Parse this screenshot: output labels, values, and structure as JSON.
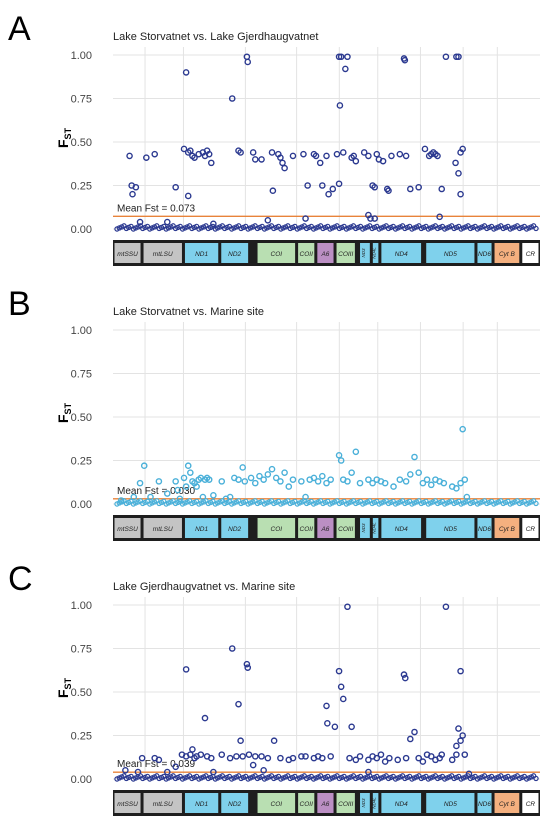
{
  "colors": {
    "dark_points": "#2b3990",
    "light_points": "#4ab0d9",
    "mean_line": "#e8833a",
    "grid": "#e3e3e3",
    "gene_blue": "#7fd1ec",
    "gene_grey": "#c4c4c4",
    "gene_green": "#b9dfb2",
    "gene_purple": "#bb8fc4",
    "gene_orange": "#f4b07f",
    "gene_white": "#ffffff",
    "gene_dark": "#1e1e1e"
  },
  "gene_map": [
    {
      "label": "mtSSU",
      "color": "gene_grey"
    },
    {
      "label": "mtLSU",
      "color": "gene_grey"
    },
    {
      "label": "ND1",
      "color": "gene_blue"
    },
    {
      "label": "ND2",
      "color": "gene_blue"
    },
    {
      "label": "COI",
      "color": "gene_green"
    },
    {
      "label": "COII",
      "color": "gene_green"
    },
    {
      "label": "A6",
      "color": "gene_purple"
    },
    {
      "label": "COIII",
      "color": "gene_green"
    },
    {
      "label": "ND3",
      "color": "gene_blue"
    },
    {
      "label": "ND4L",
      "color": "gene_blue"
    },
    {
      "label": "ND4",
      "color": "gene_blue"
    },
    {
      "label": "ND5",
      "color": "gene_blue"
    },
    {
      "label": "ND6",
      "color": "gene_blue"
    },
    {
      "label": "Cyt B",
      "color": "gene_orange"
    },
    {
      "label": "CR",
      "color": "gene_white"
    }
  ],
  "chart_data": [
    {
      "type": "scatter",
      "panel_letter": "A",
      "title": "Lake Storvatnet vs. Lake Gjerdhaugvatnet",
      "ylabel": "F",
      "ylabel_sub": "ST",
      "ylim": [
        0,
        1
      ],
      "yticks": [
        "0.00",
        "0.25",
        "0.50",
        "0.75",
        "1.00"
      ],
      "grid": true,
      "mean_label": "Mean Fst = 0.073",
      "mean_value": 0.073,
      "point_color": "dark_points",
      "points": [
        [
          0.03,
          0.42
        ],
        [
          0.035,
          0.25
        ],
        [
          0.037,
          0.2
        ],
        [
          0.045,
          0.24
        ],
        [
          0.07,
          0.41
        ],
        [
          0.09,
          0.43
        ],
        [
          0.14,
          0.24
        ],
        [
          0.165,
          0.9
        ],
        [
          0.16,
          0.46
        ],
        [
          0.17,
          0.44
        ],
        [
          0.175,
          0.45
        ],
        [
          0.18,
          0.42
        ],
        [
          0.185,
          0.41
        ],
        [
          0.17,
          0.19
        ],
        [
          0.195,
          0.43
        ],
        [
          0.205,
          0.44
        ],
        [
          0.21,
          0.42
        ],
        [
          0.215,
          0.45
        ],
        [
          0.22,
          0.43
        ],
        [
          0.225,
          0.38
        ],
        [
          0.275,
          0.75
        ],
        [
          0.29,
          0.45
        ],
        [
          0.295,
          0.44
        ],
        [
          0.31,
          0.99
        ],
        [
          0.312,
          0.96
        ],
        [
          0.33,
          0.4
        ],
        [
          0.325,
          0.44
        ],
        [
          0.345,
          0.4
        ],
        [
          0.37,
          0.44
        ],
        [
          0.372,
          0.22
        ],
        [
          0.385,
          0.43
        ],
        [
          0.39,
          0.41
        ],
        [
          0.395,
          0.38
        ],
        [
          0.4,
          0.35
        ],
        [
          0.42,
          0.42
        ],
        [
          0.445,
          0.43
        ],
        [
          0.455,
          0.25
        ],
        [
          0.47,
          0.43
        ],
        [
          0.475,
          0.42
        ],
        [
          0.485,
          0.38
        ],
        [
          0.5,
          0.42
        ],
        [
          0.49,
          0.25
        ],
        [
          0.505,
          0.2
        ],
        [
          0.515,
          0.23
        ],
        [
          0.525,
          0.43
        ],
        [
          0.53,
          0.99
        ],
        [
          0.535,
          0.99
        ],
        [
          0.54,
          0.44
        ],
        [
          0.545,
          0.92
        ],
        [
          0.55,
          0.99
        ],
        [
          0.532,
          0.71
        ],
        [
          0.53,
          0.26
        ],
        [
          0.56,
          0.41
        ],
        [
          0.565,
          0.42
        ],
        [
          0.57,
          0.39
        ],
        [
          0.59,
          0.44
        ],
        [
          0.6,
          0.42
        ],
        [
          0.61,
          0.25
        ],
        [
          0.615,
          0.24
        ],
        [
          0.62,
          0.43
        ],
        [
          0.625,
          0.4
        ],
        [
          0.635,
          0.39
        ],
        [
          0.645,
          0.23
        ],
        [
          0.648,
          0.22
        ],
        [
          0.655,
          0.42
        ],
        [
          0.675,
          0.43
        ],
        [
          0.685,
          0.98
        ],
        [
          0.687,
          0.97
        ],
        [
          0.69,
          0.42
        ],
        [
          0.7,
          0.23
        ],
        [
          0.72,
          0.24
        ],
        [
          0.735,
          0.46
        ],
        [
          0.745,
          0.42
        ],
        [
          0.75,
          0.43
        ],
        [
          0.755,
          0.44
        ],
        [
          0.76,
          0.43
        ],
        [
          0.765,
          0.42
        ],
        [
          0.775,
          0.23
        ],
        [
          0.785,
          0.99
        ],
        [
          0.81,
          0.99
        ],
        [
          0.815,
          0.99
        ],
        [
          0.808,
          0.38
        ],
        [
          0.82,
          0.44
        ],
        [
          0.825,
          0.46
        ],
        [
          0.815,
          0.32
        ],
        [
          0.82,
          0.2
        ],
        [
          0.6,
          0.08
        ],
        [
          0.605,
          0.06
        ],
        [
          0.615,
          0.06
        ],
        [
          0.77,
          0.07
        ],
        [
          0.12,
          0.04
        ],
        [
          0.36,
          0.05
        ],
        [
          0.45,
          0.06
        ],
        [
          0.055,
          0.04
        ],
        [
          0.23,
          0.03
        ]
      ]
    },
    {
      "type": "scatter",
      "panel_letter": "B",
      "title": "Lake Storvatnet vs. Marine site",
      "ylabel": "F",
      "ylabel_sub": "ST",
      "ylim": [
        0,
        1
      ],
      "yticks": [
        "0.00",
        "0.25",
        "0.50",
        "0.75",
        "1.00"
      ],
      "grid": true,
      "mean_label": "Mean Fst = 0.030",
      "mean_value": 0.03,
      "point_color": "light_points",
      "points": [
        [
          0.01,
          0.02
        ],
        [
          0.04,
          0.04
        ],
        [
          0.055,
          0.12
        ],
        [
          0.065,
          0.22
        ],
        [
          0.08,
          0.04
        ],
        [
          0.1,
          0.13
        ],
        [
          0.12,
          0.06
        ],
        [
          0.14,
          0.13
        ],
        [
          0.145,
          0.08
        ],
        [
          0.16,
          0.15
        ],
        [
          0.165,
          0.1
        ],
        [
          0.17,
          0.22
        ],
        [
          0.175,
          0.18
        ],
        [
          0.18,
          0.13
        ],
        [
          0.185,
          0.12
        ],
        [
          0.19,
          0.1
        ],
        [
          0.195,
          0.14
        ],
        [
          0.2,
          0.15
        ],
        [
          0.205,
          0.04
        ],
        [
          0.21,
          0.14
        ],
        [
          0.215,
          0.15
        ],
        [
          0.22,
          0.14
        ],
        [
          0.23,
          0.05
        ],
        [
          0.25,
          0.13
        ],
        [
          0.27,
          0.04
        ],
        [
          0.28,
          0.15
        ],
        [
          0.29,
          0.14
        ],
        [
          0.3,
          0.21
        ],
        [
          0.305,
          0.13
        ],
        [
          0.32,
          0.15
        ],
        [
          0.33,
          0.12
        ],
        [
          0.34,
          0.16
        ],
        [
          0.35,
          0.14
        ],
        [
          0.36,
          0.17
        ],
        [
          0.37,
          0.2
        ],
        [
          0.38,
          0.15
        ],
        [
          0.39,
          0.13
        ],
        [
          0.4,
          0.18
        ],
        [
          0.41,
          0.1
        ],
        [
          0.42,
          0.14
        ],
        [
          0.44,
          0.13
        ],
        [
          0.46,
          0.14
        ],
        [
          0.47,
          0.15
        ],
        [
          0.48,
          0.13
        ],
        [
          0.49,
          0.16
        ],
        [
          0.5,
          0.12
        ],
        [
          0.51,
          0.14
        ],
        [
          0.53,
          0.28
        ],
        [
          0.535,
          0.25
        ],
        [
          0.54,
          0.14
        ],
        [
          0.55,
          0.13
        ],
        [
          0.56,
          0.18
        ],
        [
          0.57,
          0.3
        ],
        [
          0.58,
          0.12
        ],
        [
          0.6,
          0.14
        ],
        [
          0.61,
          0.12
        ],
        [
          0.62,
          0.14
        ],
        [
          0.63,
          0.13
        ],
        [
          0.64,
          0.12
        ],
        [
          0.66,
          0.1
        ],
        [
          0.675,
          0.14
        ],
        [
          0.69,
          0.13
        ],
        [
          0.7,
          0.17
        ],
        [
          0.71,
          0.27
        ],
        [
          0.72,
          0.18
        ],
        [
          0.73,
          0.12
        ],
        [
          0.74,
          0.14
        ],
        [
          0.75,
          0.11
        ],
        [
          0.76,
          0.14
        ],
        [
          0.77,
          0.13
        ],
        [
          0.78,
          0.12
        ],
        [
          0.8,
          0.1
        ],
        [
          0.81,
          0.09
        ],
        [
          0.82,
          0.12
        ],
        [
          0.83,
          0.14
        ],
        [
          0.825,
          0.43
        ],
        [
          0.835,
          0.04
        ],
        [
          0.15,
          0.03
        ],
        [
          0.26,
          0.03
        ],
        [
          0.45,
          0.04
        ]
      ]
    },
    {
      "type": "scatter",
      "panel_letter": "C",
      "title": "Lake Gjerdhaugvatnet vs. Marine site",
      "ylabel": "F",
      "ylabel_sub": "ST",
      "ylim": [
        0,
        1
      ],
      "yticks": [
        "0.00",
        "0.25",
        "0.50",
        "0.75",
        "1.00"
      ],
      "grid": true,
      "mean_label": "Mean Fst = 0.039",
      "mean_value": 0.039,
      "point_color": "dark_points",
      "points": [
        [
          0.02,
          0.05
        ],
        [
          0.05,
          0.04
        ],
        [
          0.06,
          0.12
        ],
        [
          0.09,
          0.12
        ],
        [
          0.1,
          0.11
        ],
        [
          0.12,
          0.04
        ],
        [
          0.14,
          0.07
        ],
        [
          0.155,
          0.14
        ],
        [
          0.165,
          0.63
        ],
        [
          0.165,
          0.13
        ],
        [
          0.175,
          0.14
        ],
        [
          0.18,
          0.17
        ],
        [
          0.185,
          0.12
        ],
        [
          0.19,
          0.13
        ],
        [
          0.2,
          0.14
        ],
        [
          0.21,
          0.35
        ],
        [
          0.215,
          0.13
        ],
        [
          0.225,
          0.12
        ],
        [
          0.23,
          0.04
        ],
        [
          0.25,
          0.14
        ],
        [
          0.27,
          0.12
        ],
        [
          0.275,
          0.75
        ],
        [
          0.285,
          0.13
        ],
        [
          0.29,
          0.43
        ],
        [
          0.295,
          0.22
        ],
        [
          0.3,
          0.13
        ],
        [
          0.31,
          0.66
        ],
        [
          0.312,
          0.64
        ],
        [
          0.315,
          0.14
        ],
        [
          0.325,
          0.08
        ],
        [
          0.33,
          0.13
        ],
        [
          0.345,
          0.13
        ],
        [
          0.36,
          0.12
        ],
        [
          0.375,
          0.22
        ],
        [
          0.39,
          0.12
        ],
        [
          0.41,
          0.11
        ],
        [
          0.42,
          0.12
        ],
        [
          0.44,
          0.13
        ],
        [
          0.45,
          0.13
        ],
        [
          0.47,
          0.12
        ],
        [
          0.48,
          0.13
        ],
        [
          0.49,
          0.12
        ],
        [
          0.5,
          0.42
        ],
        [
          0.502,
          0.32
        ],
        [
          0.51,
          0.13
        ],
        [
          0.52,
          0.3
        ],
        [
          0.53,
          0.62
        ],
        [
          0.535,
          0.53
        ],
        [
          0.54,
          0.46
        ],
        [
          0.55,
          0.99
        ],
        [
          0.555,
          0.12
        ],
        [
          0.56,
          0.3
        ],
        [
          0.57,
          0.11
        ],
        [
          0.58,
          0.13
        ],
        [
          0.6,
          0.11
        ],
        [
          0.61,
          0.13
        ],
        [
          0.62,
          0.12
        ],
        [
          0.63,
          0.14
        ],
        [
          0.64,
          0.1
        ],
        [
          0.65,
          0.12
        ],
        [
          0.67,
          0.11
        ],
        [
          0.685,
          0.6
        ],
        [
          0.688,
          0.58
        ],
        [
          0.69,
          0.12
        ],
        [
          0.7,
          0.23
        ],
        [
          0.71,
          0.27
        ],
        [
          0.72,
          0.12
        ],
        [
          0.73,
          0.1
        ],
        [
          0.74,
          0.14
        ],
        [
          0.75,
          0.13
        ],
        [
          0.76,
          0.11
        ],
        [
          0.77,
          0.12
        ],
        [
          0.775,
          0.14
        ],
        [
          0.785,
          0.99
        ],
        [
          0.8,
          0.11
        ],
        [
          0.81,
          0.14
        ],
        [
          0.815,
          0.29
        ],
        [
          0.82,
          0.62
        ],
        [
          0.82,
          0.22
        ],
        [
          0.825,
          0.25
        ],
        [
          0.81,
          0.19
        ],
        [
          0.83,
          0.14
        ],
        [
          0.84,
          0.03
        ],
        [
          0.35,
          0.05
        ],
        [
          0.6,
          0.04
        ]
      ]
    }
  ]
}
